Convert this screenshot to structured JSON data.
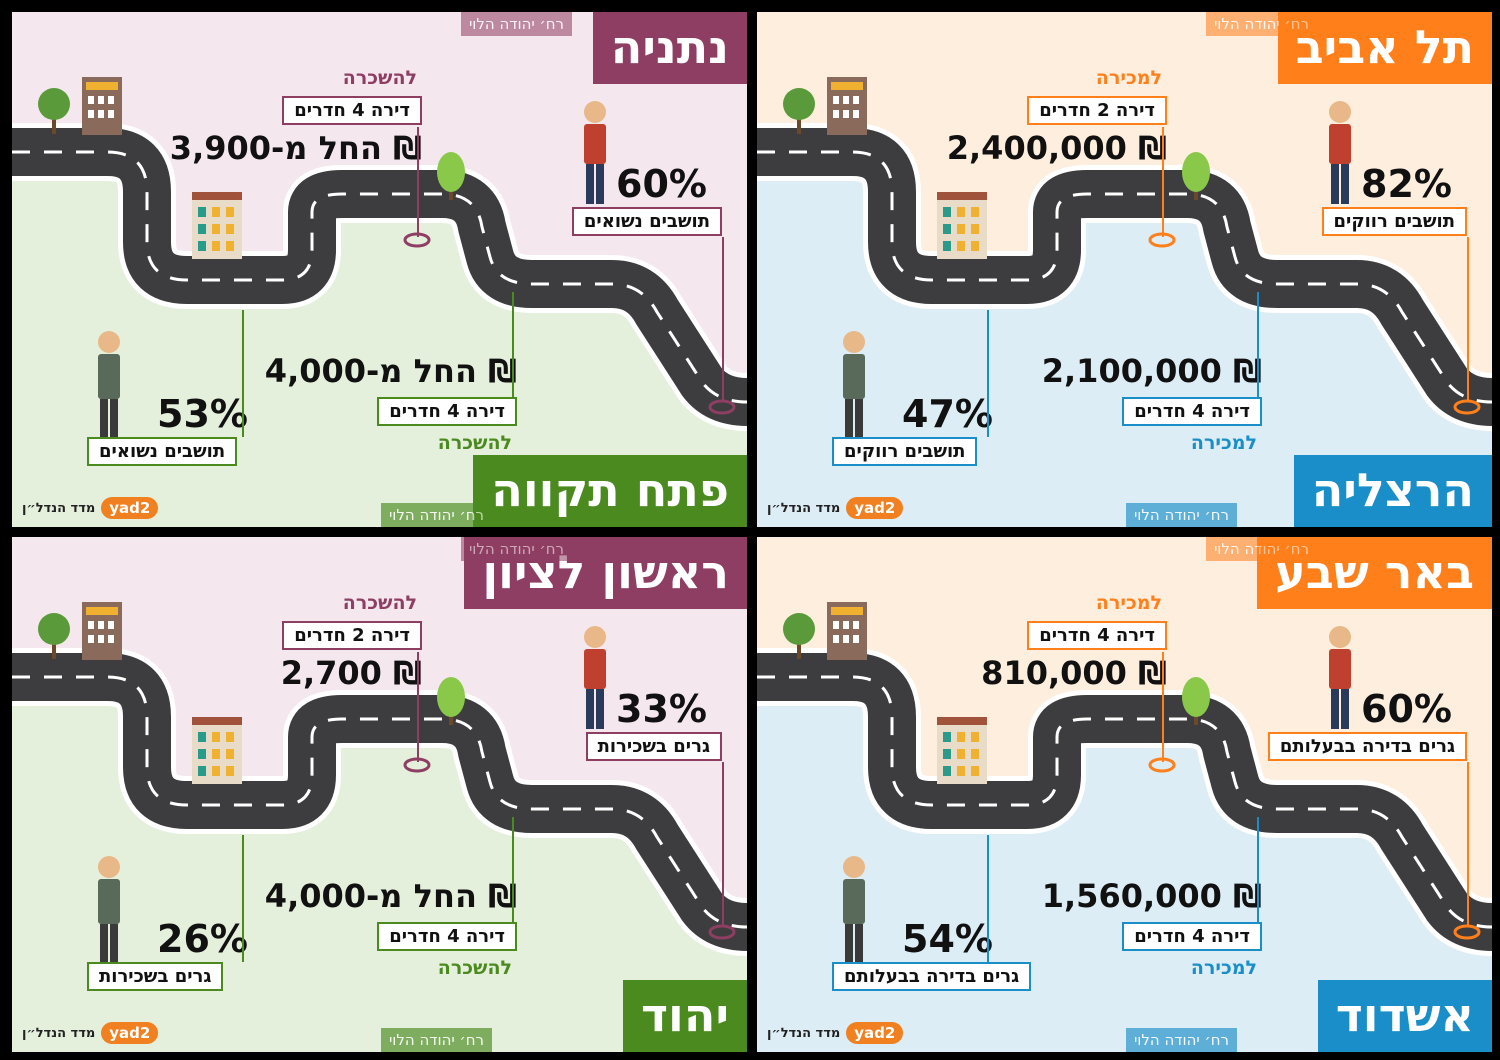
{
  "panels": [
    {
      "id": "tel-aviv",
      "city": "תל אביב",
      "street": "רח׳ יהודה הלוי",
      "accent": "#ff7f1a",
      "top": {
        "label": "למכירה",
        "apartment": "דירה 2 חדרים",
        "price": "2,400,000 ₪"
      },
      "bottom": {
        "label": "למכירה",
        "apartment": "דירה 4 חדרים",
        "price": "2,100,000 ₪"
      },
      "stat_top": {
        "percent": "82%",
        "text": "תושבים רווקים"
      },
      "stat_bottom": {
        "percent": "47%",
        "text": "תושבים רווקים"
      },
      "bottom_city": "הרצליה",
      "bottom_street": "רח׳ יהודה הלוי",
      "bottom_accent": "#1a8ec8"
    },
    {
      "id": "netanya",
      "city": "נתניה",
      "street": "רח׳ יהודה הלוי",
      "accent": "#8e3e63",
      "top": {
        "label": "להשכרה",
        "apartment": "דירה 4 חדרים",
        "price": "החל מ-3,900 ₪"
      },
      "bottom": {
        "label": "להשכרה",
        "apartment": "דירה 4 חדרים",
        "price": "החל מ-4,000 ₪"
      },
      "stat_top": {
        "percent": "60%",
        "text": "תושבים נשואים"
      },
      "stat_bottom": {
        "percent": "53%",
        "text": "תושבים נשואים"
      },
      "bottom_city": "פתח תקווה",
      "bottom_street": "רח׳ יהודה הלוי",
      "bottom_accent": "#4a8a1f"
    },
    {
      "id": "beer-sheva",
      "city": "באר שבע",
      "street": "רח׳ יהודה הלוי",
      "accent": "#ff7f1a",
      "top": {
        "label": "למכירה",
        "apartment": "דירה 4 חדרים",
        "price": "810,000 ₪"
      },
      "bottom": {
        "label": "למכירה",
        "apartment": "דירה 4 חדרים",
        "price": "1,560,000 ₪"
      },
      "stat_top": {
        "percent": "60%",
        "text": "גרים בדירה בבעלותם"
      },
      "stat_bottom": {
        "percent": "54%",
        "text": "גרים בדירה בבעלותם"
      },
      "bottom_city": "אשדוד",
      "bottom_street": "רח׳ יהודה הלוי",
      "bottom_accent": "#1a8ec8"
    },
    {
      "id": "rishon",
      "city": "ראשון לציון",
      "street": "רח׳ יהודה הלוי",
      "accent": "#8e3e63",
      "top": {
        "label": "להשכרה",
        "apartment": "דירה 2 חדרים",
        "price": "2,700 ₪"
      },
      "bottom": {
        "label": "להשכרה",
        "apartment": "דירה 4 חדרים",
        "price": "החל מ-4,000 ₪"
      },
      "stat_top": {
        "percent": "33%",
        "text": "גרים בשכירות"
      },
      "stat_bottom": {
        "percent": "26%",
        "text": "גרים בשכירות"
      },
      "bottom_city": "יהוד",
      "bottom_street": "רח׳ יהודה הלוי",
      "bottom_accent": "#4a8a1f"
    }
  ],
  "logo": {
    "brand": "yad2",
    "text": "מדד הנדל״ן"
  }
}
